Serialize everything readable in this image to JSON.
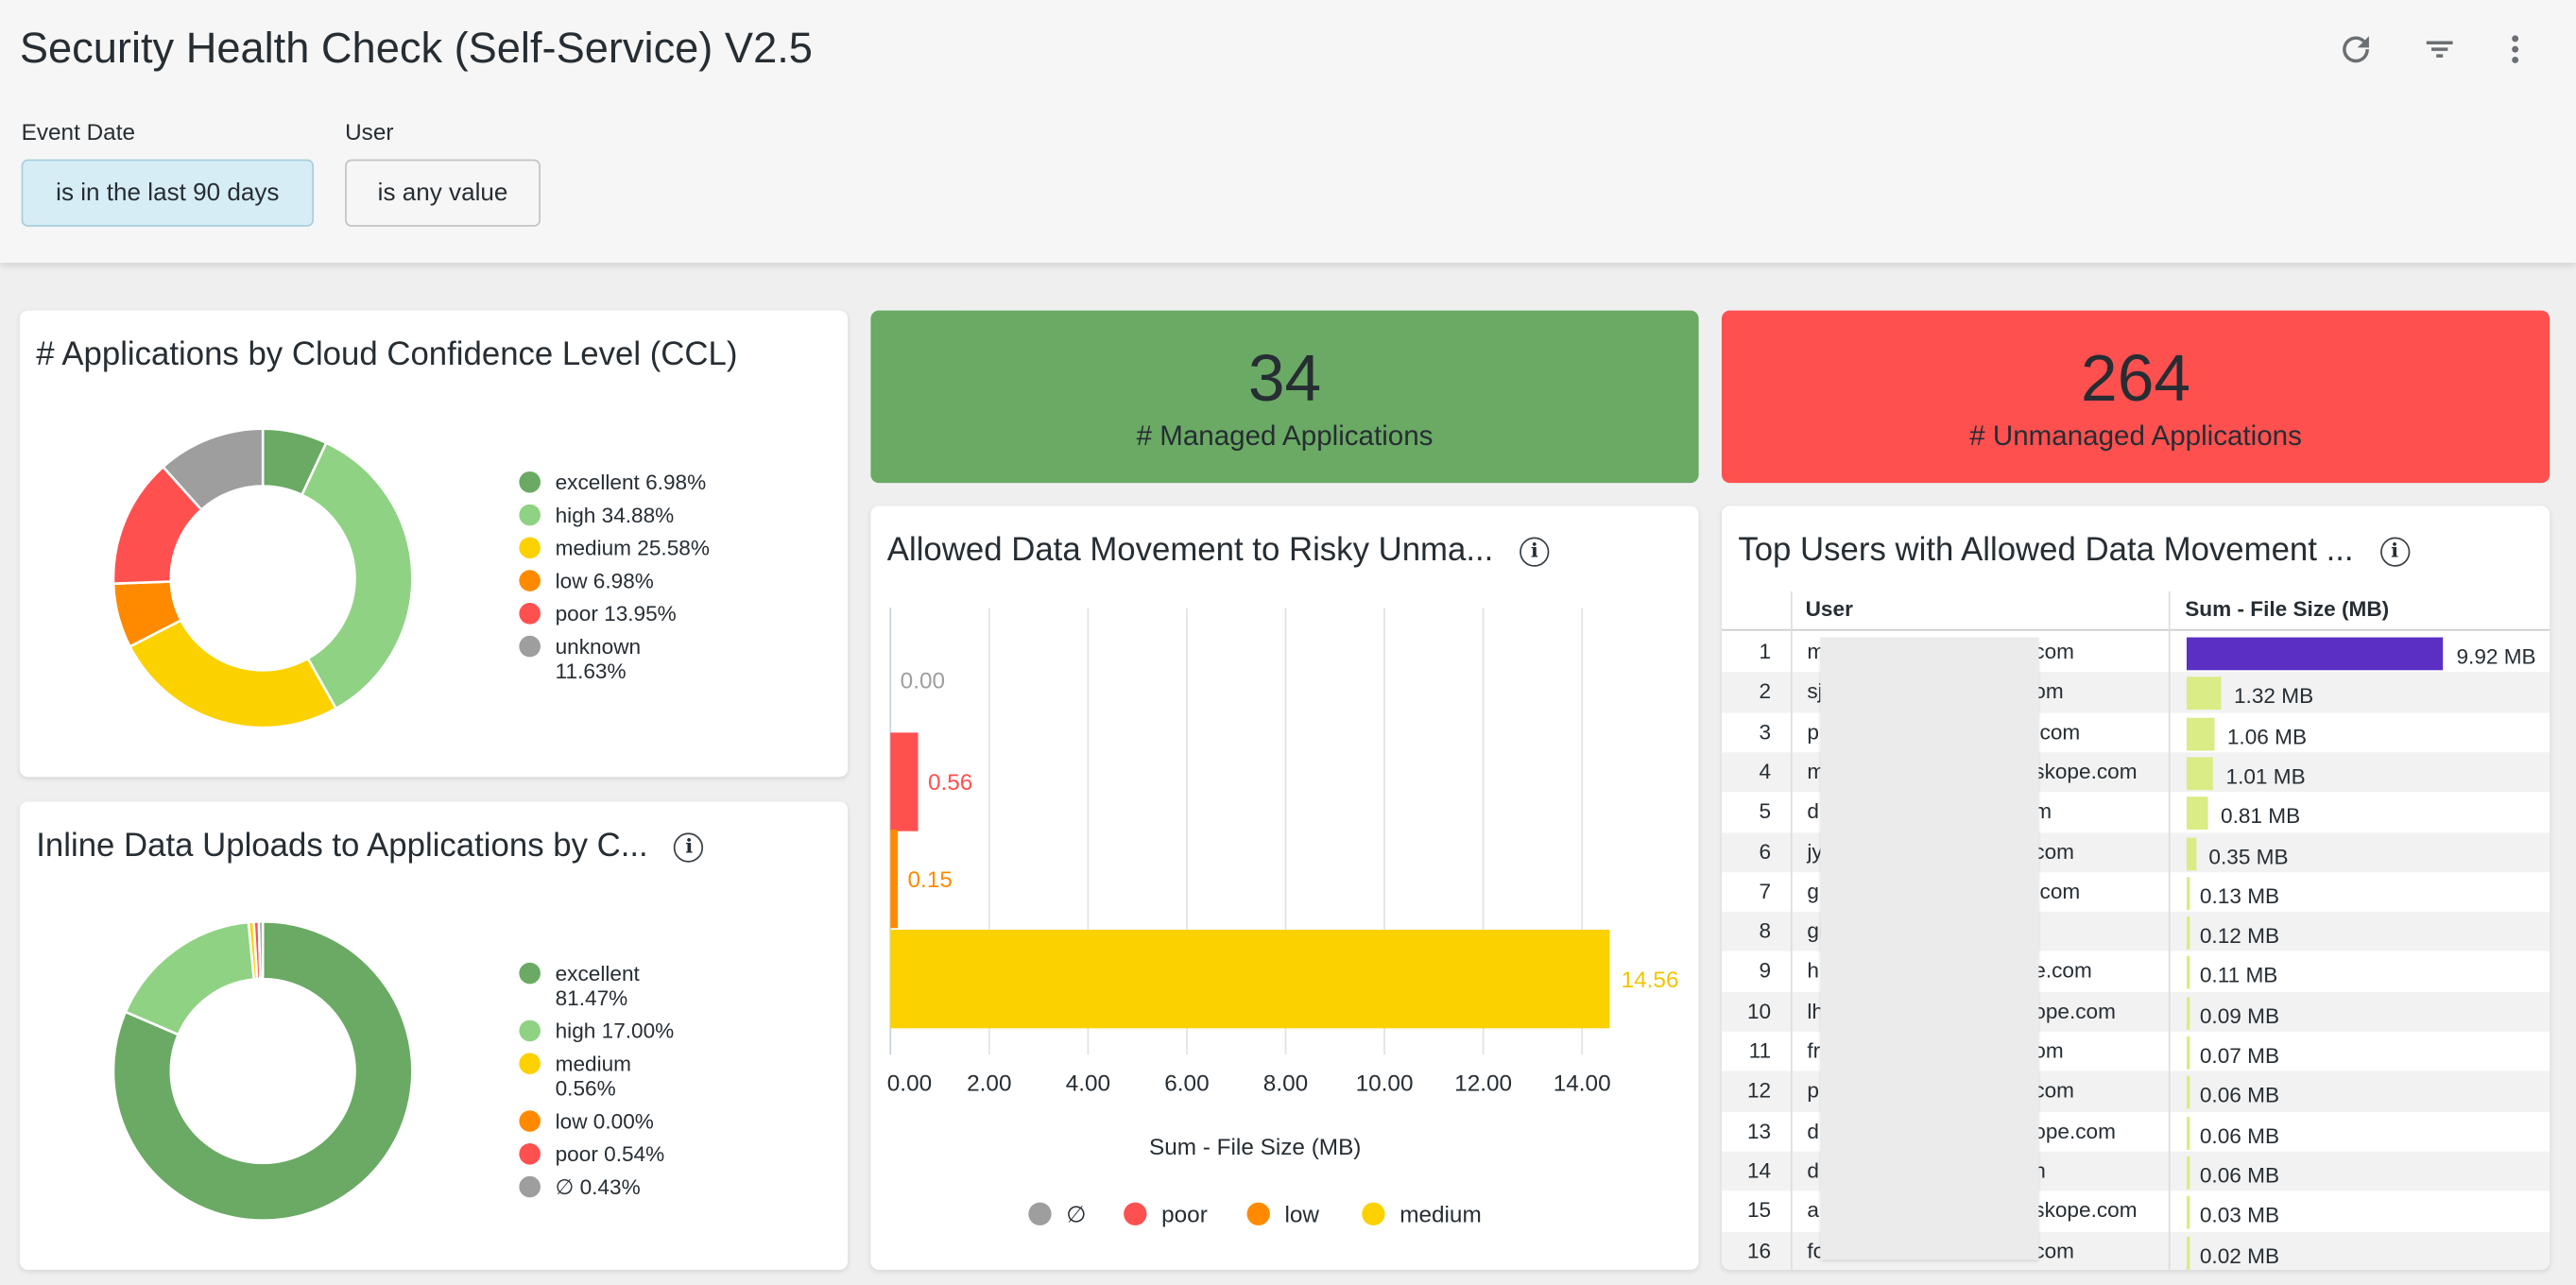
{
  "header": {
    "title": "Security Health Check (Self-Service) V2.5",
    "filters": [
      {
        "label": "Event Date",
        "value": "is in the last 90 days"
      },
      {
        "label": "User",
        "value": "is any value"
      }
    ],
    "icons": [
      "refresh-icon",
      "filter-icon",
      "more-vert-icon"
    ]
  },
  "ccl_donut": {
    "title": "# Applications by Cloud Confidence Level (CCL)",
    "items": [
      {
        "label": "excellent 6.98%",
        "value": 6.98,
        "color": "#6aaa64"
      },
      {
        "label": "high 34.88%",
        "value": 34.88,
        "color": "#8fd283"
      },
      {
        "label": "medium 25.58%",
        "value": 25.58,
        "color": "#fcd100"
      },
      {
        "label": "low 6.98%",
        "value": 6.98,
        "color": "#ff8a00"
      },
      {
        "label": "poor 13.95%",
        "value": 13.95,
        "color": "#ff5050"
      },
      {
        "label": "unknown 11.63%",
        "value": 11.63,
        "color": "#9e9e9e"
      }
    ]
  },
  "inline_donut": {
    "title": "Inline Data Uploads to Applications by C...",
    "items": [
      {
        "label": "excellent 81.47%",
        "value": 81.47,
        "color": "#6aaa64"
      },
      {
        "label": "high 17.00%",
        "value": 17.0,
        "color": "#8fd283"
      },
      {
        "label": "medium 0.56%",
        "value": 0.56,
        "color": "#fcd100"
      },
      {
        "label": "low 0.00%",
        "value": 0.0,
        "color": "#ff8a00"
      },
      {
        "label": "poor 0.54%",
        "value": 0.54,
        "color": "#ff5050"
      },
      {
        "label": "∅ 0.43%",
        "value": 0.43,
        "color": "#9e9e9e"
      }
    ]
  },
  "kpis": [
    {
      "value": "34",
      "label": "# Managed Applications",
      "color": "#6aaa64"
    },
    {
      "value": "264",
      "label": "# Unmanaged Applications",
      "color": "#ff5050"
    }
  ],
  "chart_data": {
    "type": "bar",
    "orientation": "horizontal",
    "title": "Allowed Data Movement to Risky Unma...",
    "categories": [
      "∅",
      "poor",
      "low",
      "medium"
    ],
    "values": [
      0.0,
      0.56,
      0.15,
      14.56
    ],
    "value_labels": [
      "0.00",
      "0.56",
      "0.15",
      "14.56"
    ],
    "colors": [
      "#9e9e9e",
      "#ff5050",
      "#ff8a00",
      "#fcd100"
    ],
    "xlabel": "Sum - File Size (MB)",
    "xlim": [
      0,
      14.5
    ],
    "ticks": [
      "0.00",
      "2.00",
      "4.00",
      "6.00",
      "8.00",
      "10.00",
      "12.00",
      "14.00"
    ],
    "legend": [
      "∅",
      "poor",
      "low",
      "medium"
    ],
    "legend_position": "bottom",
    "grid": true
  },
  "top_users": {
    "title": "Top Users with Allowed Data Movement ...",
    "col_user": "User",
    "col_size": "Sum - File Size (MB)",
    "rows": [
      {
        "i": "1",
        "pre": "m",
        "suf": "com",
        "mb": 9.92,
        "label": "9.92 MB"
      },
      {
        "i": "2",
        "pre": "sj",
        "suf": "om",
        "mb": 1.32,
        "label": "1.32 MB"
      },
      {
        "i": "3",
        "pre": "p",
        "suf": ".com",
        "mb": 1.06,
        "label": "1.06 MB"
      },
      {
        "i": "4",
        "pre": "m",
        "suf": "skope.com",
        "mb": 1.01,
        "label": "1.01 MB"
      },
      {
        "i": "5",
        "pre": "d",
        "suf": "m",
        "mb": 0.81,
        "label": "0.81 MB"
      },
      {
        "i": "6",
        "pre": "jy",
        "suf": "com",
        "mb": 0.35,
        "label": "0.35 MB"
      },
      {
        "i": "7",
        "pre": "g",
        "suf": ".com",
        "mb": 0.13,
        "label": "0.13 MB"
      },
      {
        "i": "8",
        "pre": "gi",
        "suf": "",
        "mb": 0.12,
        "label": "0.12 MB"
      },
      {
        "i": "9",
        "pre": "h",
        "suf": "e.com",
        "mb": 0.11,
        "label": "0.11 MB"
      },
      {
        "i": "10",
        "pre": "lh",
        "suf": "ope.com",
        "mb": 0.09,
        "label": "0.09 MB"
      },
      {
        "i": "11",
        "pre": "fr",
        "suf": "om",
        "mb": 0.07,
        "label": "0.07 MB"
      },
      {
        "i": "12",
        "pre": "p",
        "suf": "com",
        "mb": 0.06,
        "label": "0.06 MB"
      },
      {
        "i": "13",
        "pre": "d",
        "suf": "ope.com",
        "mb": 0.06,
        "label": "0.06 MB"
      },
      {
        "i": "14",
        "pre": "d",
        "suf": "n",
        "mb": 0.06,
        "label": "0.06 MB"
      },
      {
        "i": "15",
        "pre": "a",
        "suf": "skope.com",
        "mb": 0.03,
        "label": "0.03 MB"
      },
      {
        "i": "16",
        "pre": "fo",
        "suf": "com",
        "mb": 0.02,
        "label": "0.02 MB"
      }
    ]
  }
}
